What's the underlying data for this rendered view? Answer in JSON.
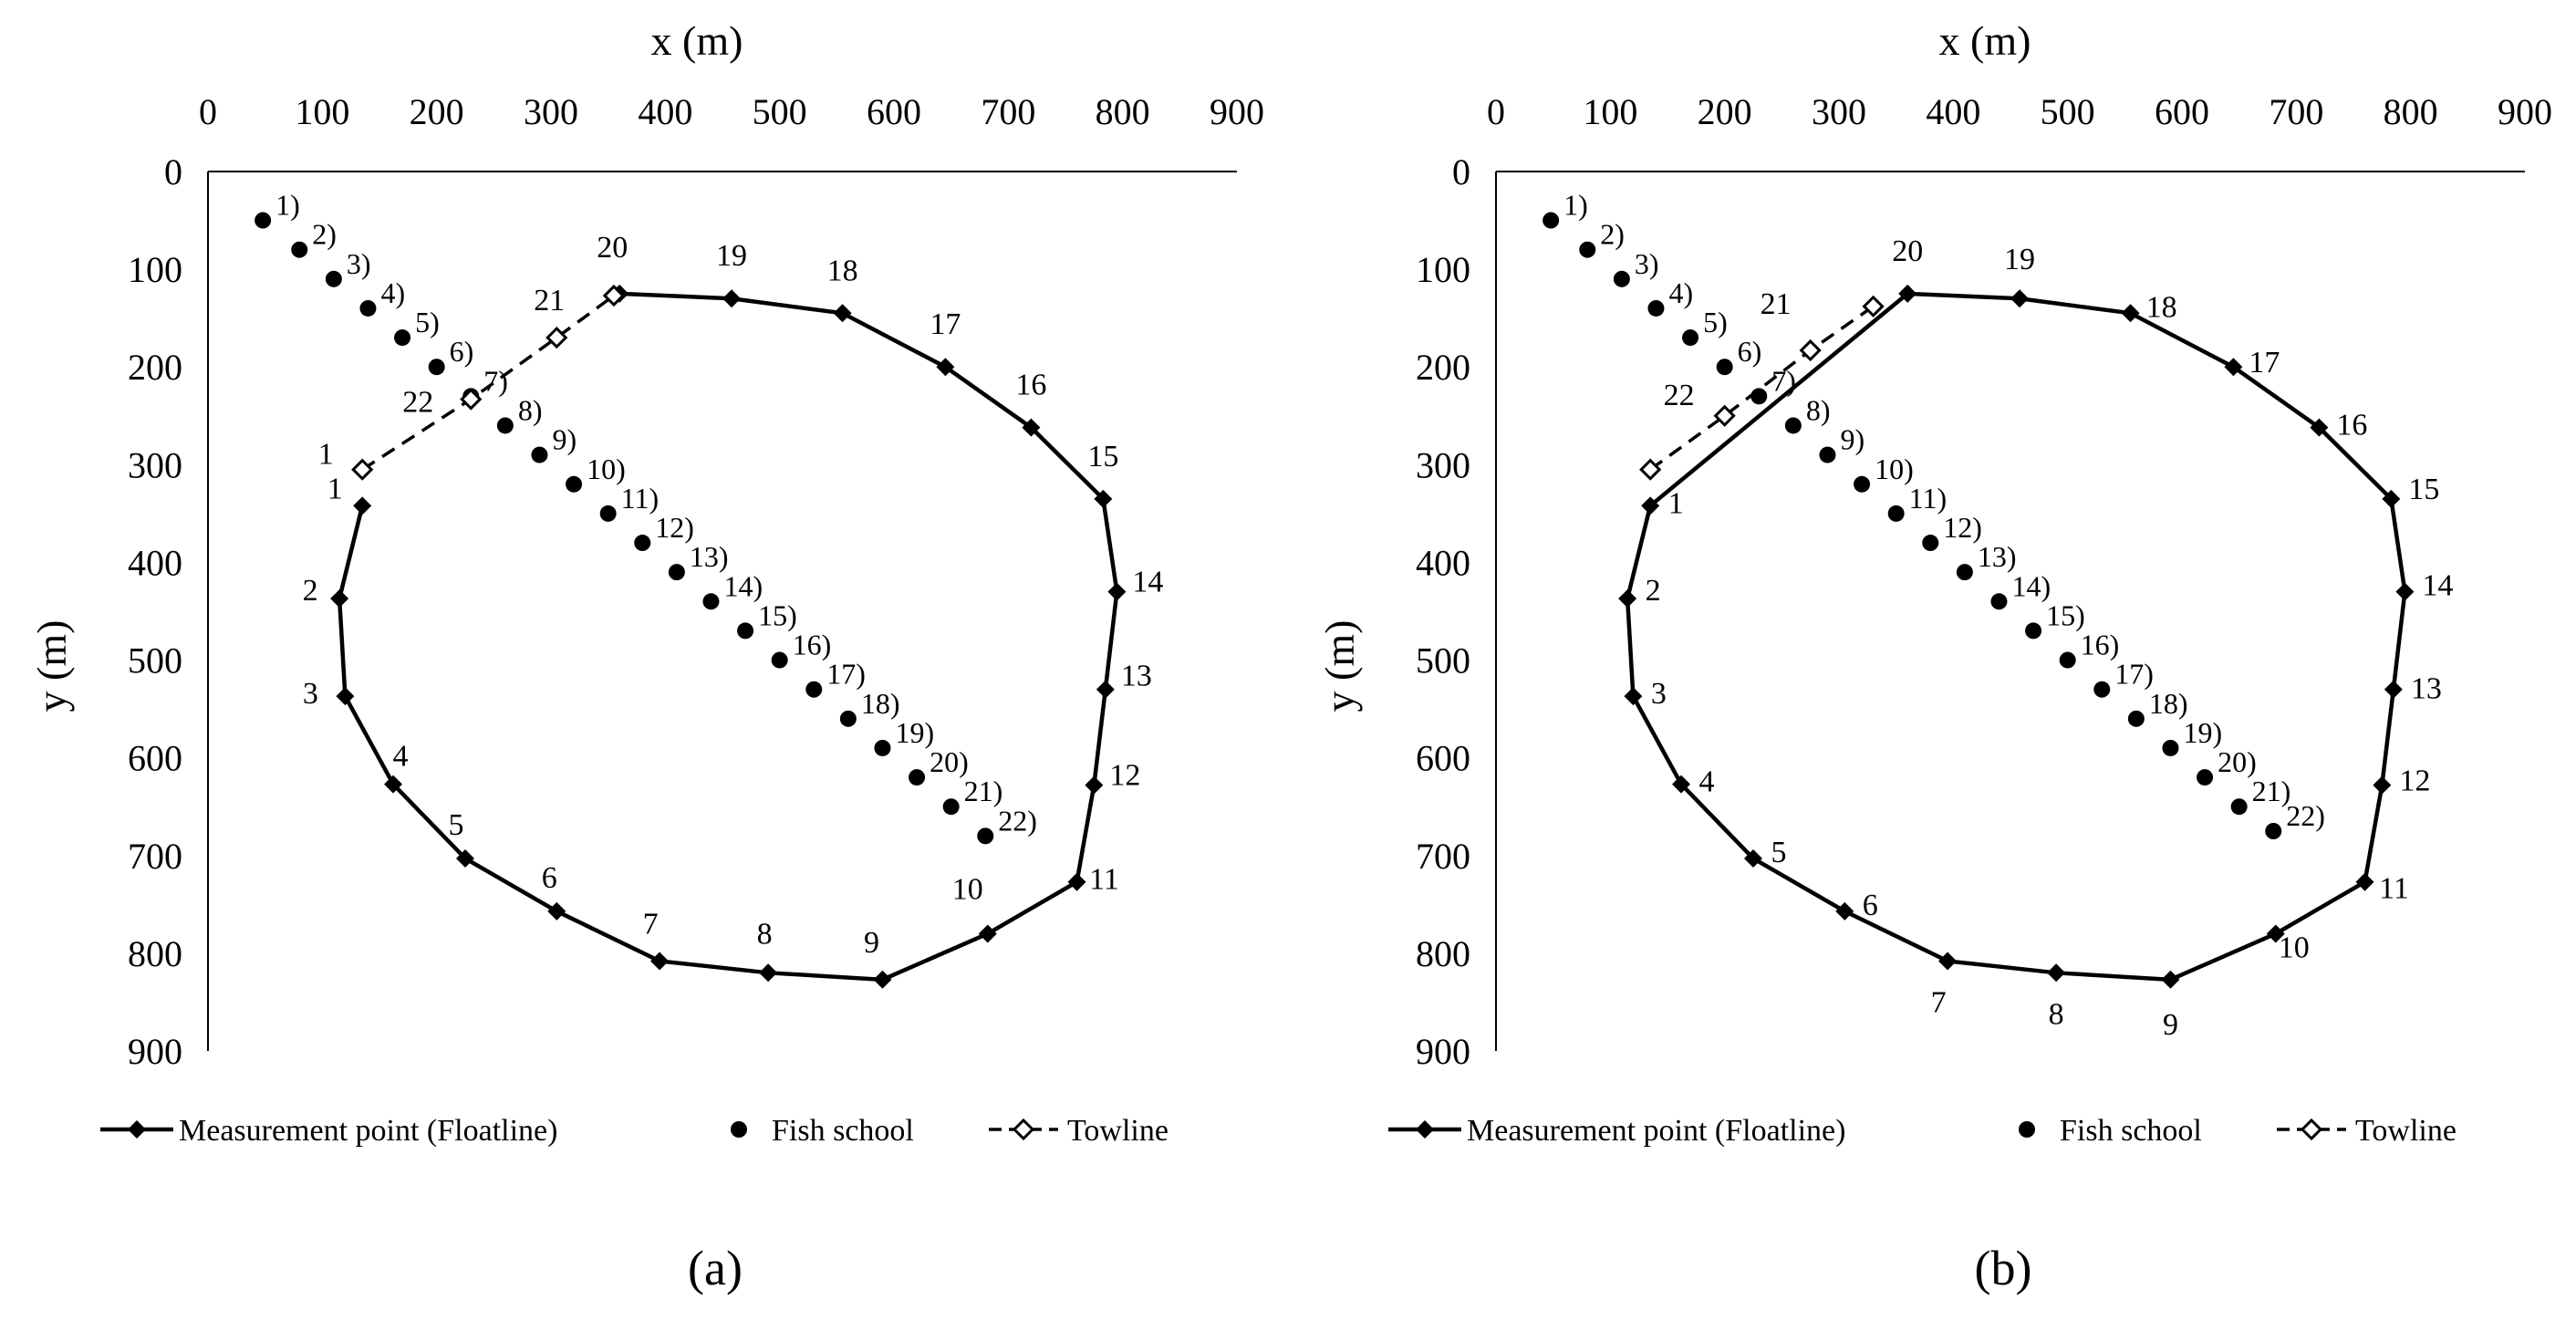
{
  "figure": {
    "legend": {
      "floatline": "Measurement point (Floatline)",
      "fish": "Fish school",
      "towline": "Towline"
    }
  },
  "chart_data": [
    {
      "type": "scatter",
      "panel_label": "(a)",
      "xlabel": "x (m)",
      "ylabel": "y (m)",
      "xlim": [
        0,
        900
      ],
      "ylim": [
        0,
        900
      ],
      "y_inverted": true,
      "x_ticks": [
        0,
        100,
        200,
        300,
        400,
        500,
        600,
        700,
        800,
        900
      ],
      "y_ticks": [
        0,
        100,
        200,
        300,
        400,
        500,
        600,
        700,
        800,
        900
      ],
      "legend_position": "bottom",
      "series": [
        {
          "name": "Measurement point (Floatline)",
          "style": "solid line with filled diamond markers",
          "closed": false,
          "points": [
            {
              "label": "1",
              "x": 135,
              "y": 342
            },
            {
              "label": "2",
              "x": 115,
              "y": 437
            },
            {
              "label": "3",
              "x": 120,
              "y": 537
            },
            {
              "label": "4",
              "x": 162,
              "y": 627
            },
            {
              "label": "5",
              "x": 225,
              "y": 703
            },
            {
              "label": "6",
              "x": 305,
              "y": 757
            },
            {
              "label": "7",
              "x": 395,
              "y": 808
            },
            {
              "label": "8",
              "x": 490,
              "y": 820
            },
            {
              "label": "9",
              "x": 590,
              "y": 827
            },
            {
              "label": "10",
              "x": 682,
              "y": 780
            },
            {
              "label": "11",
              "x": 760,
              "y": 727
            },
            {
              "label": "12",
              "x": 775,
              "y": 628
            },
            {
              "label": "13",
              "x": 785,
              "y": 530
            },
            {
              "label": "14",
              "x": 795,
              "y": 430
            },
            {
              "label": "15",
              "x": 783,
              "y": 335
            },
            {
              "label": "16",
              "x": 720,
              "y": 262
            },
            {
              "label": "17",
              "x": 645,
              "y": 200
            },
            {
              "label": "18",
              "x": 555,
              "y": 145
            },
            {
              "label": "19",
              "x": 458,
              "y": 130
            },
            {
              "label": "20",
              "x": 360,
              "y": 125
            }
          ]
        },
        {
          "name": "Fish school",
          "style": "filled circle markers",
          "points": [
            {
              "label": "1)",
              "x": 48,
              "y": 50
            },
            {
              "label": "2)",
              "x": 80,
              "y": 80
            },
            {
              "label": "3)",
              "x": 110,
              "y": 110
            },
            {
              "label": "4)",
              "x": 140,
              "y": 140
            },
            {
              "label": "5)",
              "x": 170,
              "y": 170
            },
            {
              "label": "6)",
              "x": 200,
              "y": 200
            },
            {
              "label": "7)",
              "x": 230,
              "y": 230
            },
            {
              "label": "8)",
              "x": 260,
              "y": 260
            },
            {
              "label": "9)",
              "x": 290,
              "y": 290
            },
            {
              "label": "10)",
              "x": 320,
              "y": 320
            },
            {
              "label": "11)",
              "x": 350,
              "y": 350
            },
            {
              "label": "12)",
              "x": 380,
              "y": 380
            },
            {
              "label": "13)",
              "x": 410,
              "y": 410
            },
            {
              "label": "14)",
              "x": 440,
              "y": 440
            },
            {
              "label": "15)",
              "x": 470,
              "y": 470
            },
            {
              "label": "16)",
              "x": 500,
              "y": 500
            },
            {
              "label": "17)",
              "x": 530,
              "y": 530
            },
            {
              "label": "18)",
              "x": 560,
              "y": 560
            },
            {
              "label": "19)",
              "x": 590,
              "y": 590
            },
            {
              "label": "20)",
              "x": 620,
              "y": 620
            },
            {
              "label": "21)",
              "x": 650,
              "y": 650
            },
            {
              "label": "22)",
              "x": 680,
              "y": 680
            }
          ]
        },
        {
          "name": "Towline",
          "style": "dashed line with open diamond markers",
          "points": [
            {
              "label": "1",
              "x": 135,
              "y": 305
            },
            {
              "label": "22",
              "x": 230,
              "y": 233
            },
            {
              "label": "21",
              "x": 305,
              "y": 170
            },
            {
              "label": "20",
              "x": 355,
              "y": 127
            }
          ]
        }
      ]
    },
    {
      "type": "scatter",
      "panel_label": "(b)",
      "xlabel": "x (m)",
      "ylabel": "y (m)",
      "xlim": [
        0,
        900
      ],
      "ylim": [
        0,
        900
      ],
      "y_inverted": true,
      "x_ticks": [
        0,
        100,
        200,
        300,
        400,
        500,
        600,
        700,
        800,
        900
      ],
      "y_ticks": [
        0,
        100,
        200,
        300,
        400,
        500,
        600,
        700,
        800,
        900
      ],
      "legend_position": "bottom",
      "series": [
        {
          "name": "Measurement point (Floatline)",
          "style": "solid line with filled diamond markers",
          "closed": true,
          "points": [
            {
              "label": "1",
              "x": 135,
              "y": 342
            },
            {
              "label": "2",
              "x": 115,
              "y": 437
            },
            {
              "label": "3",
              "x": 120,
              "y": 537
            },
            {
              "label": "4",
              "x": 162,
              "y": 627
            },
            {
              "label": "5",
              "x": 225,
              "y": 703
            },
            {
              "label": "6",
              "x": 305,
              "y": 757
            },
            {
              "label": "7",
              "x": 395,
              "y": 808
            },
            {
              "label": "8",
              "x": 490,
              "y": 820
            },
            {
              "label": "9",
              "x": 590,
              "y": 827
            },
            {
              "label": "10",
              "x": 682,
              "y": 780
            },
            {
              "label": "11",
              "x": 760,
              "y": 727
            },
            {
              "label": "12",
              "x": 775,
              "y": 628
            },
            {
              "label": "13",
              "x": 785,
              "y": 530
            },
            {
              "label": "14",
              "x": 795,
              "y": 430
            },
            {
              "label": "15",
              "x": 783,
              "y": 335
            },
            {
              "label": "16",
              "x": 720,
              "y": 262
            },
            {
              "label": "17",
              "x": 645,
              "y": 200
            },
            {
              "label": "18",
              "x": 555,
              "y": 145
            },
            {
              "label": "19",
              "x": 458,
              "y": 130
            },
            {
              "label": "20",
              "x": 360,
              "y": 125
            }
          ]
        },
        {
          "name": "Fish school",
          "style": "filled circle markers",
          "points": [
            {
              "label": "1)",
              "x": 48,
              "y": 50
            },
            {
              "label": "2)",
              "x": 80,
              "y": 80
            },
            {
              "label": "3)",
              "x": 110,
              "y": 110
            },
            {
              "label": "4)",
              "x": 140,
              "y": 140
            },
            {
              "label": "5)",
              "x": 170,
              "y": 170
            },
            {
              "label": "6)",
              "x": 200,
              "y": 200
            },
            {
              "label": "7)",
              "x": 230,
              "y": 230
            },
            {
              "label": "8)",
              "x": 260,
              "y": 260
            },
            {
              "label": "9)",
              "x": 290,
              "y": 290
            },
            {
              "label": "10)",
              "x": 320,
              "y": 320
            },
            {
              "label": "11)",
              "x": 350,
              "y": 350
            },
            {
              "label": "12)",
              "x": 380,
              "y": 380
            },
            {
              "label": "13)",
              "x": 410,
              "y": 410
            },
            {
              "label": "14)",
              "x": 440,
              "y": 440
            },
            {
              "label": "15)",
              "x": 470,
              "y": 470
            },
            {
              "label": "16)",
              "x": 500,
              "y": 500
            },
            {
              "label": "17)",
              "x": 530,
              "y": 530
            },
            {
              "label": "18)",
              "x": 560,
              "y": 560
            },
            {
              "label": "19)",
              "x": 590,
              "y": 590
            },
            {
              "label": "20)",
              "x": 620,
              "y": 620
            },
            {
              "label": "21)",
              "x": 650,
              "y": 650
            },
            {
              "label": "22)",
              "x": 680,
              "y": 675
            }
          ]
        },
        {
          "name": "Towline",
          "style": "dashed line with open diamond markers",
          "points": [
            {
              "label": "1",
              "x": 135,
              "y": 305
            },
            {
              "label": "22",
              "x": 200,
              "y": 250
            },
            {
              "label": "21",
              "x": 275,
              "y": 183
            },
            {
              "label": "20",
              "x": 330,
              "y": 138
            }
          ]
        }
      ]
    }
  ]
}
